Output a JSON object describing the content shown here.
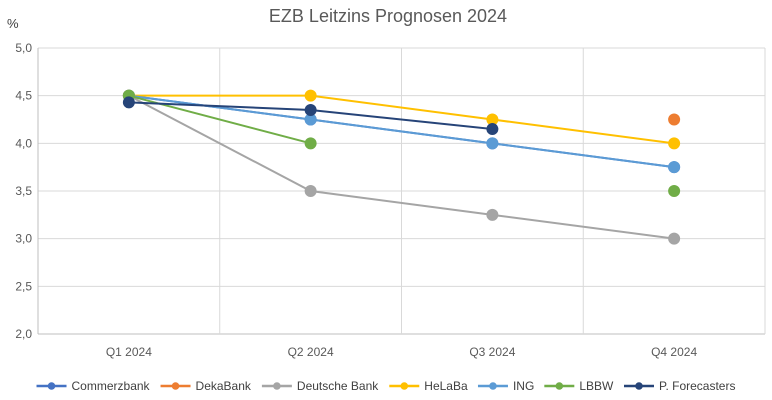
{
  "chart_data": {
    "type": "line",
    "title": "EZB Leitzins Prognosen 2024",
    "unit_label": "%",
    "xlabel": "",
    "ylabel": "",
    "categories": [
      "Q1 2024",
      "Q2 2024",
      "Q3 2024",
      "Q4 2024"
    ],
    "ylim": [
      2.0,
      5.0
    ],
    "yticks": [
      2.0,
      2.5,
      3.0,
      3.5,
      4.0,
      4.5,
      5.0
    ],
    "ytick_labels": [
      "2,0",
      "2,5",
      "3,0",
      "3,5",
      "4,0",
      "4,5",
      "5,0"
    ],
    "grid": true,
    "legend_position": "bottom",
    "series": [
      {
        "name": "Commerzbank",
        "color": "#4472c4",
        "values": [
          4.5,
          4.25,
          4.0,
          3.75
        ]
      },
      {
        "name": "DekaBank",
        "color": "#ed7d31",
        "values": [
          4.5,
          null,
          null,
          4.25
        ]
      },
      {
        "name": "Deutsche Bank",
        "color": "#a5a5a5",
        "values": [
          4.5,
          3.5,
          3.25,
          3.0
        ]
      },
      {
        "name": "HeLaBa",
        "color": "#ffc000",
        "values": [
          4.5,
          4.5,
          4.25,
          4.0
        ]
      },
      {
        "name": "ING",
        "color": "#5b9bd5",
        "values": [
          4.5,
          4.25,
          4.0,
          3.75
        ]
      },
      {
        "name": "LBBW",
        "color": "#70ad47",
        "values": [
          4.5,
          4.0,
          null,
          3.5
        ]
      },
      {
        "name": "P. Forecasters",
        "color": "#264478",
        "values": [
          4.43,
          4.35,
          4.15,
          null
        ]
      }
    ]
  }
}
